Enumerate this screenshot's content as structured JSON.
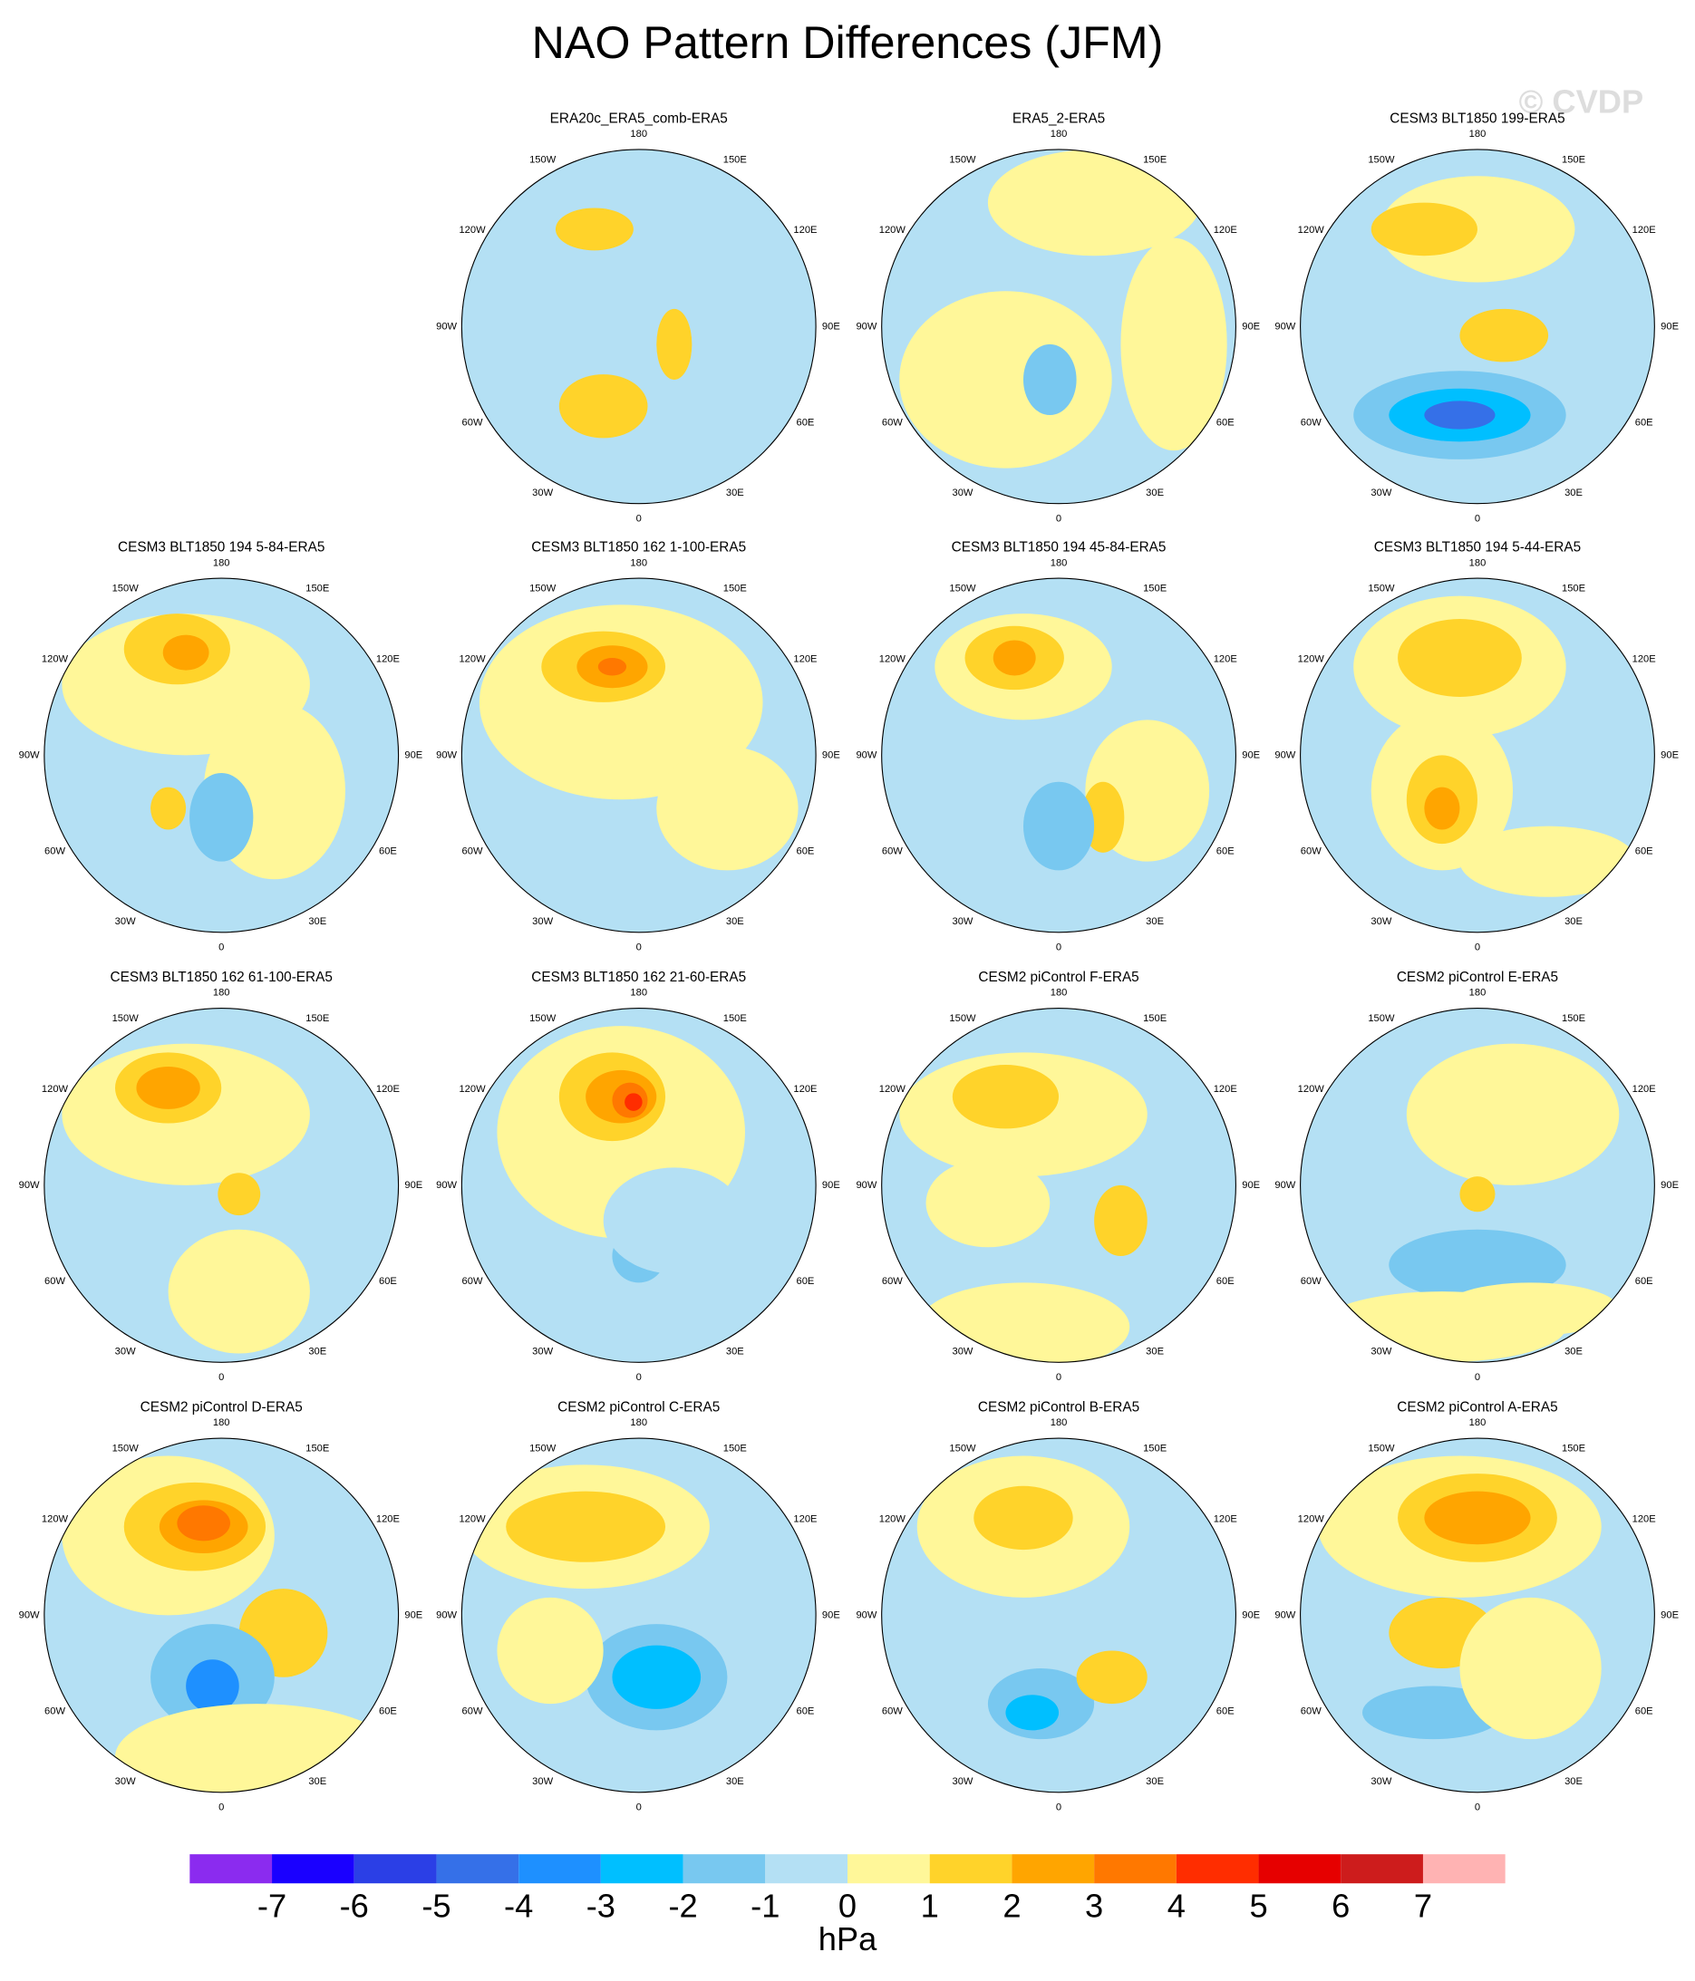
{
  "title": "NAO Pattern Differences (JFM)",
  "watermark": "© CVDP",
  "panels": [
    "ERA20c_ERA5_comb-ERA5",
    "ERA5_2-ERA5",
    "CESM3 BLT1850 199-ERA5",
    "CESM3 BLT1850 194 5-84-ERA5",
    "CESM3 BLT1850 162 1-100-ERA5",
    "CESM3 BLT1850 194 45-84-ERA5",
    "CESM3 BLT1850 194 5-44-ERA5",
    "CESM3 BLT1850 162 61-100-ERA5",
    "CESM3 BLT1850 162 21-60-ERA5",
    "CESM2 piControl F-ERA5",
    "CESM2 piControl E-ERA5",
    "CESM2 piControl D-ERA5",
    "CESM2 piControl C-ERA5",
    "CESM2 piControl B-ERA5",
    "CESM2 piControl A-ERA5"
  ],
  "longitude_labels": [
    "180",
    "150E",
    "120E",
    "90E",
    "60E",
    "30E",
    "0",
    "30W",
    "60W",
    "90W",
    "120W",
    "150W"
  ],
  "colorbar": {
    "levels": [
      -7,
      -6,
      -5,
      -4,
      -3,
      -2,
      -1,
      0,
      1,
      2,
      3,
      4,
      5,
      6,
      7
    ],
    "colors": [
      "#8b2bef",
      "#1a00ff",
      "#2b3fe6",
      "#3570e8",
      "#1e90ff",
      "#00bfff",
      "#78c8f0",
      "#b4e0f4",
      "#fff799",
      "#ffd32a",
      "#ffa500",
      "#ff7800",
      "#ff2d00",
      "#e60000",
      "#cd1c1c",
      "#ffb3b3"
    ],
    "units": "hPa"
  }
}
